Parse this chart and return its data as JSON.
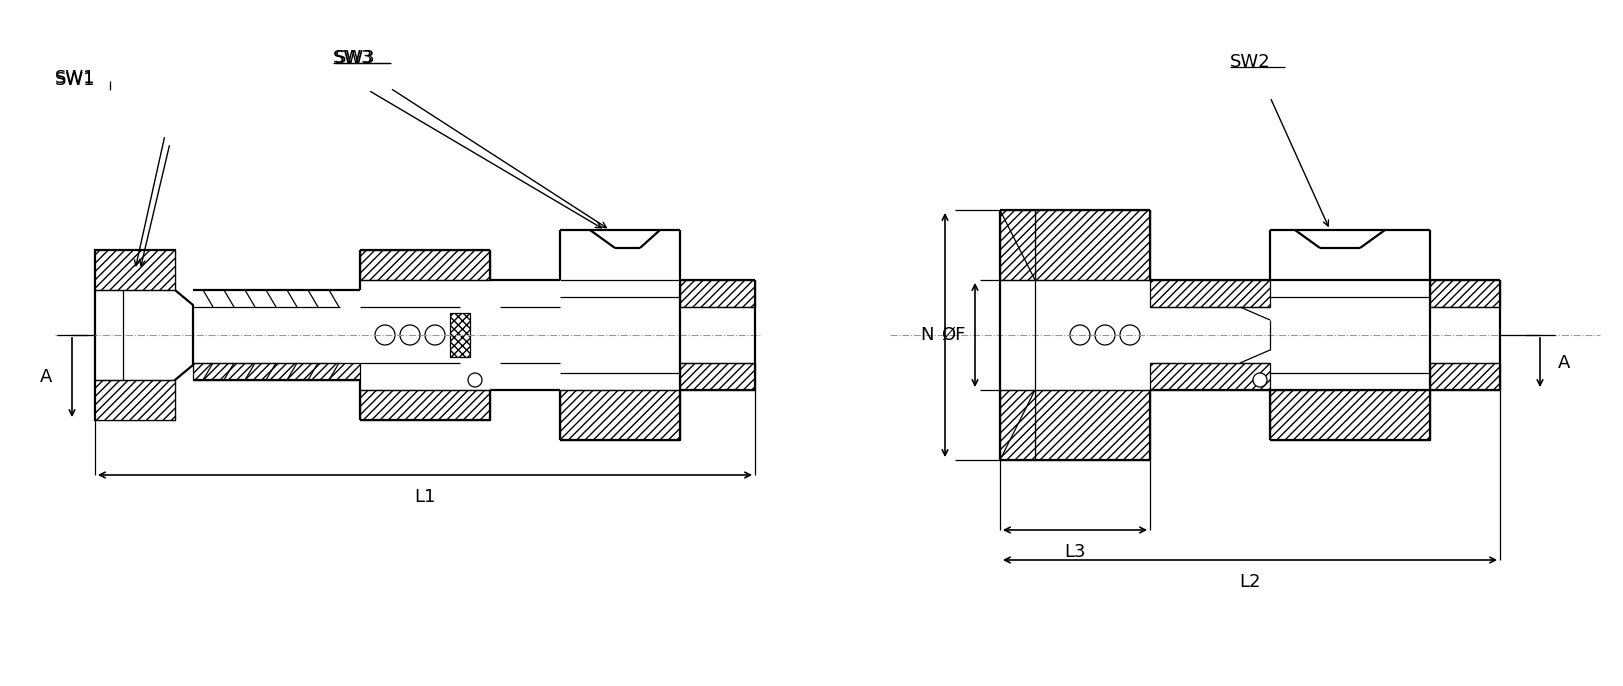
{
  "bg_color": "#ffffff",
  "line_color": "#000000",
  "fig_width": 16.24,
  "fig_height": 6.86,
  "lw_thick": 2.2,
  "lw_med": 1.6,
  "lw_thin": 0.9,
  "lw_cl": 0.8,
  "labels": {
    "SW1": "SW1",
    "SW2": "SW2",
    "SW3": "SW3",
    "A": "A",
    "N": "N",
    "phiF": "ØF",
    "L1": "L1",
    "L2": "L2",
    "L3": "L3"
  },
  "font_size": 13
}
